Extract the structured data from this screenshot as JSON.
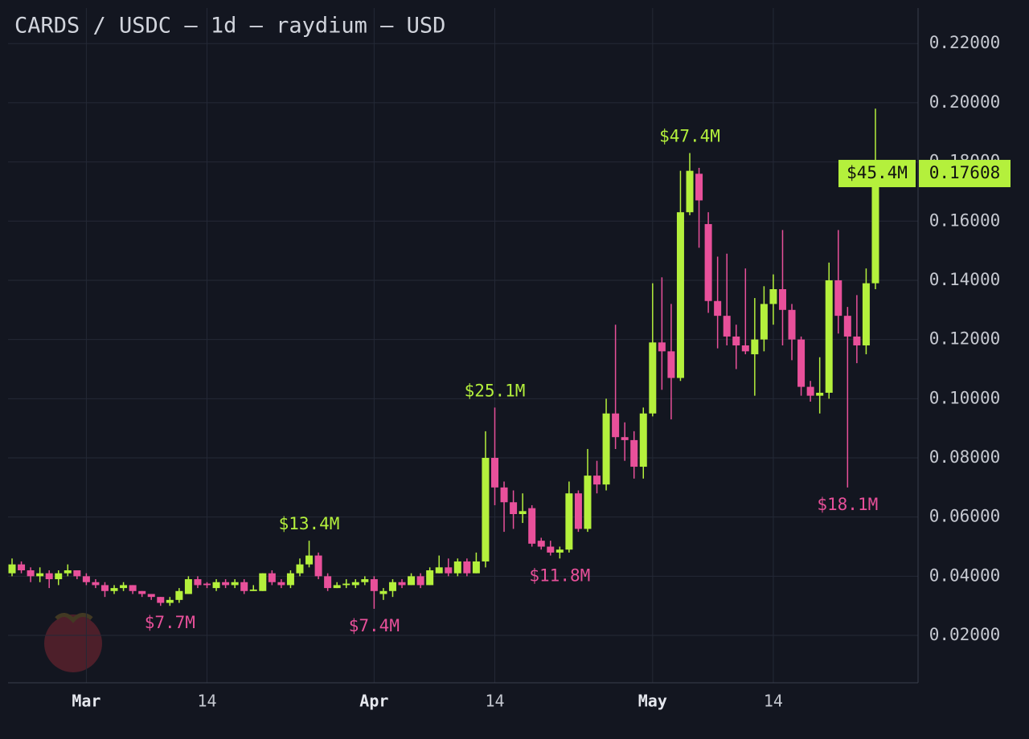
{
  "chart_data": {
    "type": "candlestick",
    "title": "CARDS / USDC — 1d — raydium — USD",
    "up_color": "#b4f03c",
    "down_color": "#e8509a",
    "grid": true,
    "categories": [
      "Feb 21",
      "Feb 22",
      "Feb 23",
      "Feb 24",
      "Feb 25",
      "Feb 26",
      "Feb 27",
      "Feb 28",
      "Mar 1",
      "Mar 2",
      "Mar 3",
      "Mar 4",
      "Mar 5",
      "Mar 6",
      "Mar 7",
      "Mar 8",
      "Mar 9",
      "Mar 10",
      "Mar 11",
      "Mar 12",
      "Mar 13",
      "Mar 14",
      "Mar 15",
      "Mar 16",
      "Mar 17",
      "Mar 18",
      "Mar 19",
      "Mar 20",
      "Mar 21",
      "Mar 22",
      "Mar 23",
      "Mar 24",
      "Mar 25",
      "Mar 26",
      "Mar 27",
      "Mar 28",
      "Mar 29",
      "Mar 30",
      "Mar 31",
      "Apr 1",
      "Apr 2",
      "Apr 3",
      "Apr 4",
      "Apr 5",
      "Apr 6",
      "Apr 7",
      "Apr 8",
      "Apr 9",
      "Apr 10",
      "Apr 11",
      "Apr 12",
      "Apr 13",
      "Apr 14",
      "Apr 15",
      "Apr 16",
      "Apr 17",
      "Apr 18",
      "Apr 19",
      "Apr 20",
      "Apr 21",
      "Apr 22",
      "Apr 23",
      "Apr 24",
      "Apr 25",
      "Apr 26",
      "Apr 27",
      "Apr 28",
      "Apr 29",
      "Apr 30",
      "May 1",
      "May 2",
      "May 3",
      "May 4",
      "May 5",
      "May 6",
      "May 7",
      "May 8",
      "May 9",
      "May 10",
      "May 11",
      "May 12",
      "May 13",
      "May 14",
      "May 15",
      "May 16",
      "May 17",
      "May 18",
      "May 19",
      "May 20",
      "May 21",
      "May 22",
      "May 23",
      "May 24",
      "May 25"
    ],
    "open": [
      0.041,
      0.044,
      0.042,
      0.04,
      0.041,
      0.039,
      0.041,
      0.042,
      0.04,
      0.038,
      0.037,
      0.035,
      0.036,
      0.037,
      0.035,
      0.034,
      0.033,
      0.031,
      0.032,
      0.034,
      0.039,
      0.0375,
      0.036,
      0.038,
      0.037,
      0.038,
      0.035,
      0.035,
      0.041,
      0.038,
      0.037,
      0.041,
      0.044,
      0.047,
      0.04,
      0.036,
      0.037,
      0.037,
      0.038,
      0.039,
      0.034,
      0.035,
      0.038,
      0.037,
      0.04,
      0.037,
      0.041,
      0.043,
      0.041,
      0.045,
      0.041,
      0.045,
      0.08,
      0.07,
      0.065,
      0.061,
      0.063,
      0.052,
      0.05,
      0.048,
      0.049,
      0.068,
      0.056,
      0.074,
      0.071,
      0.095,
      0.087,
      0.086,
      0.077,
      0.095,
      0.119,
      0.116,
      0.107,
      0.163,
      0.176,
      0.159,
      0.133,
      0.128,
      0.121,
      0.118,
      0.115,
      0.12,
      0.132,
      0.137,
      0.13,
      0.12,
      0.104,
      0.101,
      0.102,
      0.14,
      0.128,
      0.121,
      0.118,
      0.139
    ],
    "high": [
      0.046,
      0.045,
      0.043,
      0.043,
      0.042,
      0.042,
      0.044,
      0.042,
      0.041,
      0.039,
      0.038,
      0.037,
      0.038,
      0.037,
      0.035,
      0.034,
      0.033,
      0.033,
      0.036,
      0.04,
      0.04,
      0.038,
      0.039,
      0.039,
      0.039,
      0.039,
      0.037,
      0.041,
      0.042,
      0.039,
      0.042,
      0.046,
      0.052,
      0.048,
      0.041,
      0.038,
      0.039,
      0.039,
      0.04,
      0.04,
      0.036,
      0.039,
      0.039,
      0.041,
      0.041,
      0.043,
      0.047,
      0.046,
      0.046,
      0.046,
      0.048,
      0.089,
      0.097,
      0.072,
      0.069,
      0.068,
      0.064,
      0.053,
      0.052,
      0.05,
      0.072,
      0.069,
      0.083,
      0.079,
      0.1,
      0.125,
      0.092,
      0.089,
      0.097,
      0.139,
      0.141,
      0.132,
      0.177,
      0.183,
      0.178,
      0.163,
      0.148,
      0.149,
      0.125,
      0.144,
      0.134,
      0.138,
      0.142,
      0.157,
      0.132,
      0.121,
      0.106,
      0.114,
      0.146,
      0.157,
      0.131,
      0.135,
      0.144,
      0.198
    ],
    "low": [
      0.04,
      0.041,
      0.038,
      0.038,
      0.036,
      0.037,
      0.04,
      0.039,
      0.037,
      0.036,
      0.033,
      0.034,
      0.035,
      0.034,
      0.033,
      0.032,
      0.03,
      0.03,
      0.031,
      0.034,
      0.036,
      0.036,
      0.035,
      0.036,
      0.036,
      0.034,
      0.035,
      0.035,
      0.037,
      0.036,
      0.036,
      0.04,
      0.043,
      0.039,
      0.035,
      0.036,
      0.036,
      0.036,
      0.037,
      0.029,
      0.032,
      0.033,
      0.036,
      0.037,
      0.036,
      0.037,
      0.041,
      0.04,
      0.04,
      0.04,
      0.041,
      0.043,
      0.064,
      0.055,
      0.056,
      0.058,
      0.05,
      0.049,
      0.047,
      0.046,
      0.048,
      0.055,
      0.055,
      0.068,
      0.069,
      0.083,
      0.079,
      0.073,
      0.073,
      0.094,
      0.103,
      0.093,
      0.106,
      0.162,
      0.151,
      0.129,
      0.117,
      0.118,
      0.11,
      0.115,
      0.101,
      0.116,
      0.125,
      0.118,
      0.113,
      0.101,
      0.099,
      0.095,
      0.1,
      0.122,
      0.07,
      0.112,
      0.115,
      0.137
    ],
    "close": [
      0.044,
      0.042,
      0.04,
      0.041,
      0.039,
      0.041,
      0.042,
      0.04,
      0.038,
      0.037,
      0.035,
      0.036,
      0.037,
      0.035,
      0.034,
      0.033,
      0.031,
      0.032,
      0.035,
      0.039,
      0.037,
      0.037,
      0.038,
      0.037,
      0.038,
      0.035,
      0.0355,
      0.041,
      0.038,
      0.037,
      0.041,
      0.044,
      0.047,
      0.04,
      0.036,
      0.037,
      0.0375,
      0.038,
      0.039,
      0.035,
      0.035,
      0.038,
      0.037,
      0.04,
      0.037,
      0.042,
      0.043,
      0.041,
      0.045,
      0.041,
      0.045,
      0.08,
      0.07,
      0.065,
      0.061,
      0.062,
      0.051,
      0.05,
      0.048,
      0.049,
      0.068,
      0.056,
      0.074,
      0.071,
      0.095,
      0.087,
      0.086,
      0.077,
      0.095,
      0.119,
      0.116,
      0.107,
      0.163,
      0.177,
      0.167,
      0.133,
      0.128,
      0.121,
      0.118,
      0.116,
      0.12,
      0.132,
      0.137,
      0.13,
      0.12,
      0.104,
      0.101,
      0.102,
      0.14,
      0.128,
      0.121,
      0.118,
      0.139,
      0.176
    ],
    "ylim": [
      0.004,
      0.232
    ],
    "yticks": [
      {
        "value": 0.02,
        "label": "0.02000"
      },
      {
        "value": 0.04,
        "label": "0.04000"
      },
      {
        "value": 0.06,
        "label": "0.06000"
      },
      {
        "value": 0.08,
        "label": "0.08000"
      },
      {
        "value": 0.1,
        "label": "0.10000"
      },
      {
        "value": 0.12,
        "label": "0.12000"
      },
      {
        "value": 0.14,
        "label": "0.14000"
      },
      {
        "value": 0.16,
        "label": "0.16000"
      },
      {
        "value": 0.18,
        "label": "0.18000"
      },
      {
        "value": 0.2,
        "label": "0.20000"
      },
      {
        "value": 0.22,
        "label": "0.22000"
      }
    ],
    "xticks": [
      {
        "value": "Mar 1",
        "label": "Mar"
      },
      {
        "value": "Mar 14",
        "label": "14"
      },
      {
        "value": "Apr 1",
        "label": "Apr"
      },
      {
        "value": "Apr 14",
        "label": "14"
      },
      {
        "value": "May 1",
        "label": "May"
      },
      {
        "value": "May 14",
        "label": "14"
      }
    ],
    "annotations": [
      {
        "text": "$7.7M",
        "x": "Mar 10",
        "color": "#e8509a"
      },
      {
        "text": "$13.4M",
        "x": "Mar 25",
        "color": "#b4f03c"
      },
      {
        "text": "$7.4M",
        "x": "Apr 1",
        "color": "#e8509a"
      },
      {
        "text": "$25.1M",
        "x": "Apr 14",
        "color": "#b4f03c"
      },
      {
        "text": "$11.8M",
        "x": "Apr 21",
        "color": "#e8509a"
      },
      {
        "text": "$47.4M",
        "x": "May 5",
        "color": "#b4f03c"
      },
      {
        "text": "$18.1M",
        "x": "May 22",
        "color": "#e8509a"
      }
    ],
    "price_tag": {
      "value": 0.17608,
      "volume_label": "$45.4M"
    }
  }
}
